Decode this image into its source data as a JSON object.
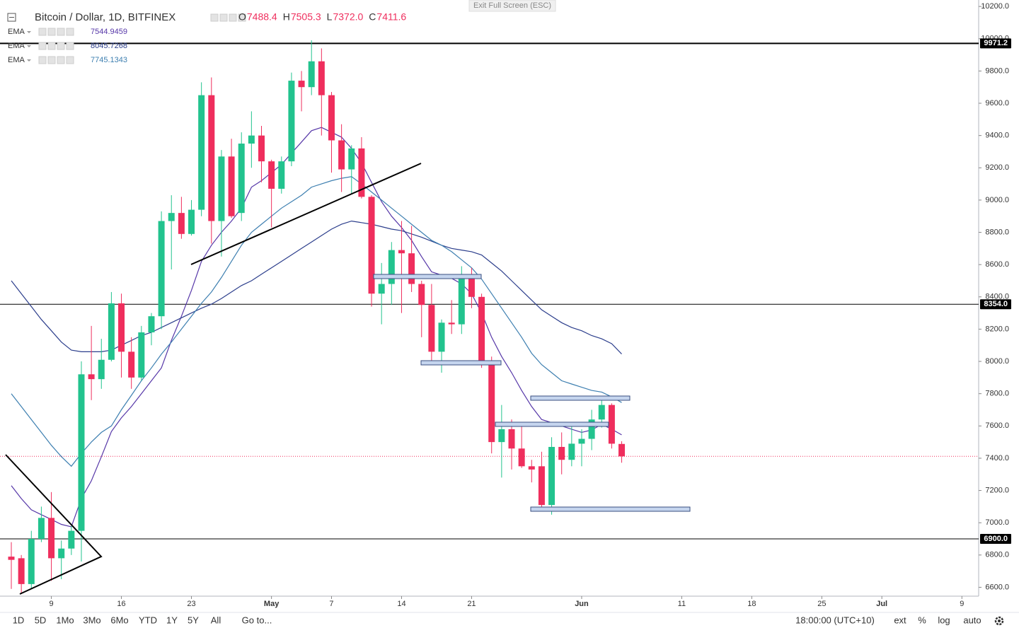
{
  "chart_data": {
    "type": "candlestick",
    "title": "Bitcoin / Dollar, 1D, BITFINEX",
    "header_values": [
      {
        "label": "O",
        "value": "7488.4"
      },
      {
        "label": "H",
        "value": "7505.3"
      },
      {
        "label": "L",
        "value": "7372.0"
      },
      {
        "label": "C",
        "value": "7411.6"
      }
    ],
    "x": [
      "Apr 5",
      "Apr 6",
      "Apr 7",
      "Apr 8",
      "Apr 9",
      "Apr 10",
      "Apr 11",
      "Apr 12",
      "Apr 13",
      "Apr 14",
      "Apr 15",
      "Apr 16",
      "Apr 17",
      "Apr 18",
      "Apr 19",
      "Apr 20",
      "Apr 21",
      "Apr 22",
      "Apr 23",
      "Apr 24",
      "Apr 25",
      "Apr 26",
      "Apr 27",
      "Apr 28",
      "Apr 29",
      "Apr 30",
      "May 1",
      "May 2",
      "May 3",
      "May 4",
      "May 5",
      "May 6",
      "May 7",
      "May 8",
      "May 9",
      "May 10",
      "May 11",
      "May 12",
      "May 13",
      "May 14",
      "May 15",
      "May 16",
      "May 17",
      "May 18",
      "May 19",
      "May 20",
      "May 21",
      "May 22",
      "May 23",
      "May 24",
      "May 25",
      "May 26",
      "May 27",
      "May 28",
      "May 29",
      "May 30",
      "May 31",
      "Jun 1",
      "Jun 2",
      "Jun 3",
      "Jun 4",
      "Jun 5"
    ],
    "open": [
      6790,
      6780,
      6620,
      6900,
      7030,
      6780,
      6840,
      6950,
      7920,
      7890,
      8010,
      8360,
      8060,
      7900,
      8180,
      8280,
      8870,
      8920,
      8790,
      8940,
      9650,
      8870,
      9270,
      8920,
      9350,
      9400,
      9240,
      9070,
      9240,
      9740,
      9700,
      9860,
      9650,
      9370,
      9190,
      9320,
      9020,
      8420,
      8480,
      8690,
      8670,
      8480,
      8350,
      8060,
      8240,
      8230,
      8530,
      8400,
      7990,
      7500,
      7580,
      7460,
      7350,
      7350,
      7110,
      7470,
      7390,
      7490,
      7520,
      7640,
      7730,
      7488.4
    ],
    "high": [
      6880,
      6800,
      6950,
      7100,
      7190,
      6890,
      6980,
      8000,
      8220,
      8140,
      8430,
      8420,
      8150,
      8220,
      8300,
      8930,
      9030,
      9020,
      9000,
      9730,
      9760,
      9310,
      9380,
      9420,
      9550,
      9460,
      9250,
      9270,
      9790,
      9800,
      9990,
      9940,
      9670,
      9470,
      9340,
      9390,
      9030,
      8610,
      8740,
      8870,
      8840,
      8500,
      8480,
      8260,
      8380,
      8590,
      8580,
      8420,
      8030,
      7730,
      7640,
      7620,
      7390,
      7440,
      7530,
      7560,
      7600,
      7580,
      7700,
      7760,
      7740,
      7505.3
    ],
    "low": [
      6590,
      6560,
      6590,
      6880,
      6640,
      6650,
      6800,
      6760,
      7760,
      7830,
      8000,
      7900,
      7830,
      7880,
      8100,
      8200,
      8570,
      8760,
      8780,
      8900,
      8730,
      8650,
      8890,
      8870,
      9200,
      9110,
      8830,
      9040,
      9210,
      9550,
      9650,
      9400,
      9170,
      9050,
      9040,
      9010,
      8340,
      8230,
      8350,
      8300,
      8430,
      8150,
      8000,
      7930,
      8170,
      8170,
      8330,
      7960,
      7430,
      7280,
      7330,
      7340,
      7250,
      7080,
      7050,
      7300,
      7350,
      7350,
      7450,
      7590,
      7460,
      7372
    ],
    "close": [
      6770,
      6620,
      6900,
      7030,
      6780,
      6840,
      6950,
      7920,
      7890,
      8010,
      8360,
      8060,
      7900,
      8180,
      8280,
      8870,
      8920,
      8790,
      8940,
      9650,
      8870,
      9270,
      8900,
      9350,
      9400,
      9240,
      9070,
      9240,
      9740,
      9700,
      9860,
      9650,
      9370,
      9190,
      9320,
      9020,
      8420,
      8480,
      8690,
      8670,
      8480,
      8350,
      8060,
      8240,
      8230,
      8530,
      8400,
      7990,
      7500,
      7580,
      7460,
      7350,
      7330,
      7110,
      7470,
      7390,
      7490,
      7520,
      7640,
      7730,
      7490,
      7411.6
    ],
    "up_color": "#22c38e",
    "down_color": "#ef2e5d",
    "series": [
      {
        "name": "EMA",
        "color": "#5637a8",
        "values": [
          7230,
          7150,
          7080,
          7050,
          7020,
          6990,
          6975,
          7150,
          7260,
          7410,
          7565,
          7650,
          7720,
          7800,
          7880,
          7960,
          8130,
          8280,
          8440,
          8620,
          8720,
          8800,
          8870,
          8950,
          9080,
          9120,
          9170,
          9220,
          9290,
          9360,
          9430,
          9450,
          9420,
          9390,
          9320,
          9230,
          9110,
          8990,
          8900,
          8830,
          8750,
          8650,
          8555,
          8535,
          8515,
          8480,
          8420,
          8300,
          8150,
          8030,
          7930,
          7820,
          7720,
          7640,
          7620,
          7600,
          7580,
          7560,
          7575,
          7610,
          7580,
          7544.9459
        ]
      },
      {
        "name": "EMA",
        "color": "#2c3e8c",
        "values": [
          8500,
          8420,
          8340,
          8260,
          8190,
          8120,
          8070,
          8060,
          8060,
          8060,
          8070,
          8100,
          8130,
          8160,
          8180,
          8210,
          8240,
          8270,
          8300,
          8330,
          8355,
          8390,
          8430,
          8470,
          8500,
          8540,
          8580,
          8620,
          8660,
          8700,
          8740,
          8780,
          8820,
          8850,
          8870,
          8860,
          8850,
          8835,
          8820,
          8810,
          8790,
          8770,
          8745,
          8720,
          8700,
          8690,
          8680,
          8660,
          8610,
          8560,
          8500,
          8440,
          8380,
          8320,
          8280,
          8240,
          8210,
          8190,
          8160,
          8140,
          8110,
          8045.7268
        ]
      },
      {
        "name": "EMA",
        "color": "#3d7fb0",
        "values": [
          7800,
          7720,
          7640,
          7560,
          7480,
          7410,
          7350,
          7430,
          7500,
          7560,
          7600,
          7700,
          7790,
          7880,
          7960,
          8045,
          8120,
          8200,
          8280,
          8360,
          8430,
          8520,
          8620,
          8720,
          8800,
          8850,
          8900,
          8950,
          8990,
          9030,
          9080,
          9100,
          9120,
          9135,
          9145,
          9100,
          9050,
          9000,
          8950,
          8900,
          8850,
          8800,
          8750,
          8720,
          8680,
          8630,
          8580,
          8510,
          8420,
          8330,
          8240,
          8150,
          8050,
          7980,
          7930,
          7880,
          7860,
          7840,
          7820,
          7810,
          7780,
          7745.1343
        ]
      }
    ],
    "hlines": [
      {
        "value": 9971.2,
        "label": "9971.2"
      },
      {
        "value": 8354,
        "label": "8354.0"
      },
      {
        "value": 6900,
        "label": "6900.0"
      }
    ],
    "hline_color": "#000000",
    "last_price_color": "#ef2e5d",
    "ylim": [
      6545,
      10240
    ],
    "yticks": [
      {
        "value": 6600,
        "label": "6600.0"
      },
      {
        "value": 6800,
        "label": "6800.0"
      },
      {
        "value": 7000,
        "label": "7000.0"
      },
      {
        "value": 7200,
        "label": "7200.0"
      },
      {
        "value": 7400,
        "label": "7400.0"
      },
      {
        "value": 7600,
        "label": "7600.0"
      },
      {
        "value": 7800,
        "label": "7800.0"
      },
      {
        "value": 8000,
        "label": "8000.0"
      },
      {
        "value": 8200,
        "label": "8200.0"
      },
      {
        "value": 8400,
        "label": "8400.0"
      },
      {
        "value": 8600,
        "label": "8600.0"
      },
      {
        "value": 8800,
        "label": "8800.0"
      },
      {
        "value": 9000,
        "label": "9000.0"
      },
      {
        "value": 9200,
        "label": "9200.0"
      },
      {
        "value": 9400,
        "label": "9400.0"
      },
      {
        "value": 9600,
        "label": "9600.0"
      },
      {
        "value": 9800,
        "label": "9800.0"
      },
      {
        "value": 10000,
        "label": "10000.0"
      },
      {
        "value": 10200,
        "label": "10200.0"
      }
    ],
    "xticks": [
      {
        "value": "Apr 9",
        "label": "9"
      },
      {
        "value": "Apr 16",
        "label": "16"
      },
      {
        "value": "Apr 23",
        "label": "23"
      },
      {
        "value": "May 1",
        "label": "May"
      },
      {
        "value": "May 7",
        "label": "7"
      },
      {
        "value": "May 14",
        "label": "14"
      },
      {
        "value": "May 21",
        "label": "21"
      },
      {
        "value": "Jun 1",
        "label": "Jun"
      },
      {
        "value": "Jun 11",
        "label": "11"
      },
      {
        "value": "Jun 18",
        "label": "18"
      },
      {
        "value": "Jun 25",
        "label": "25"
      },
      {
        "value": "Jul 1",
        "label": "Jul"
      },
      {
        "value": "Jul 9",
        "label": "9"
      }
    ],
    "grid": false
  },
  "exit_fullscreen": "Exit Full Screen (ESC)",
  "toolbar": {
    "ranges": [
      "1D",
      "5D",
      "1Mo",
      "3Mo",
      "6Mo",
      "YTD",
      "1Y",
      "5Y",
      "All"
    ],
    "goto": "Go to...",
    "time": "18:00:00 (UTC+10)",
    "options": [
      "ext",
      "%",
      "log",
      "auto"
    ]
  }
}
